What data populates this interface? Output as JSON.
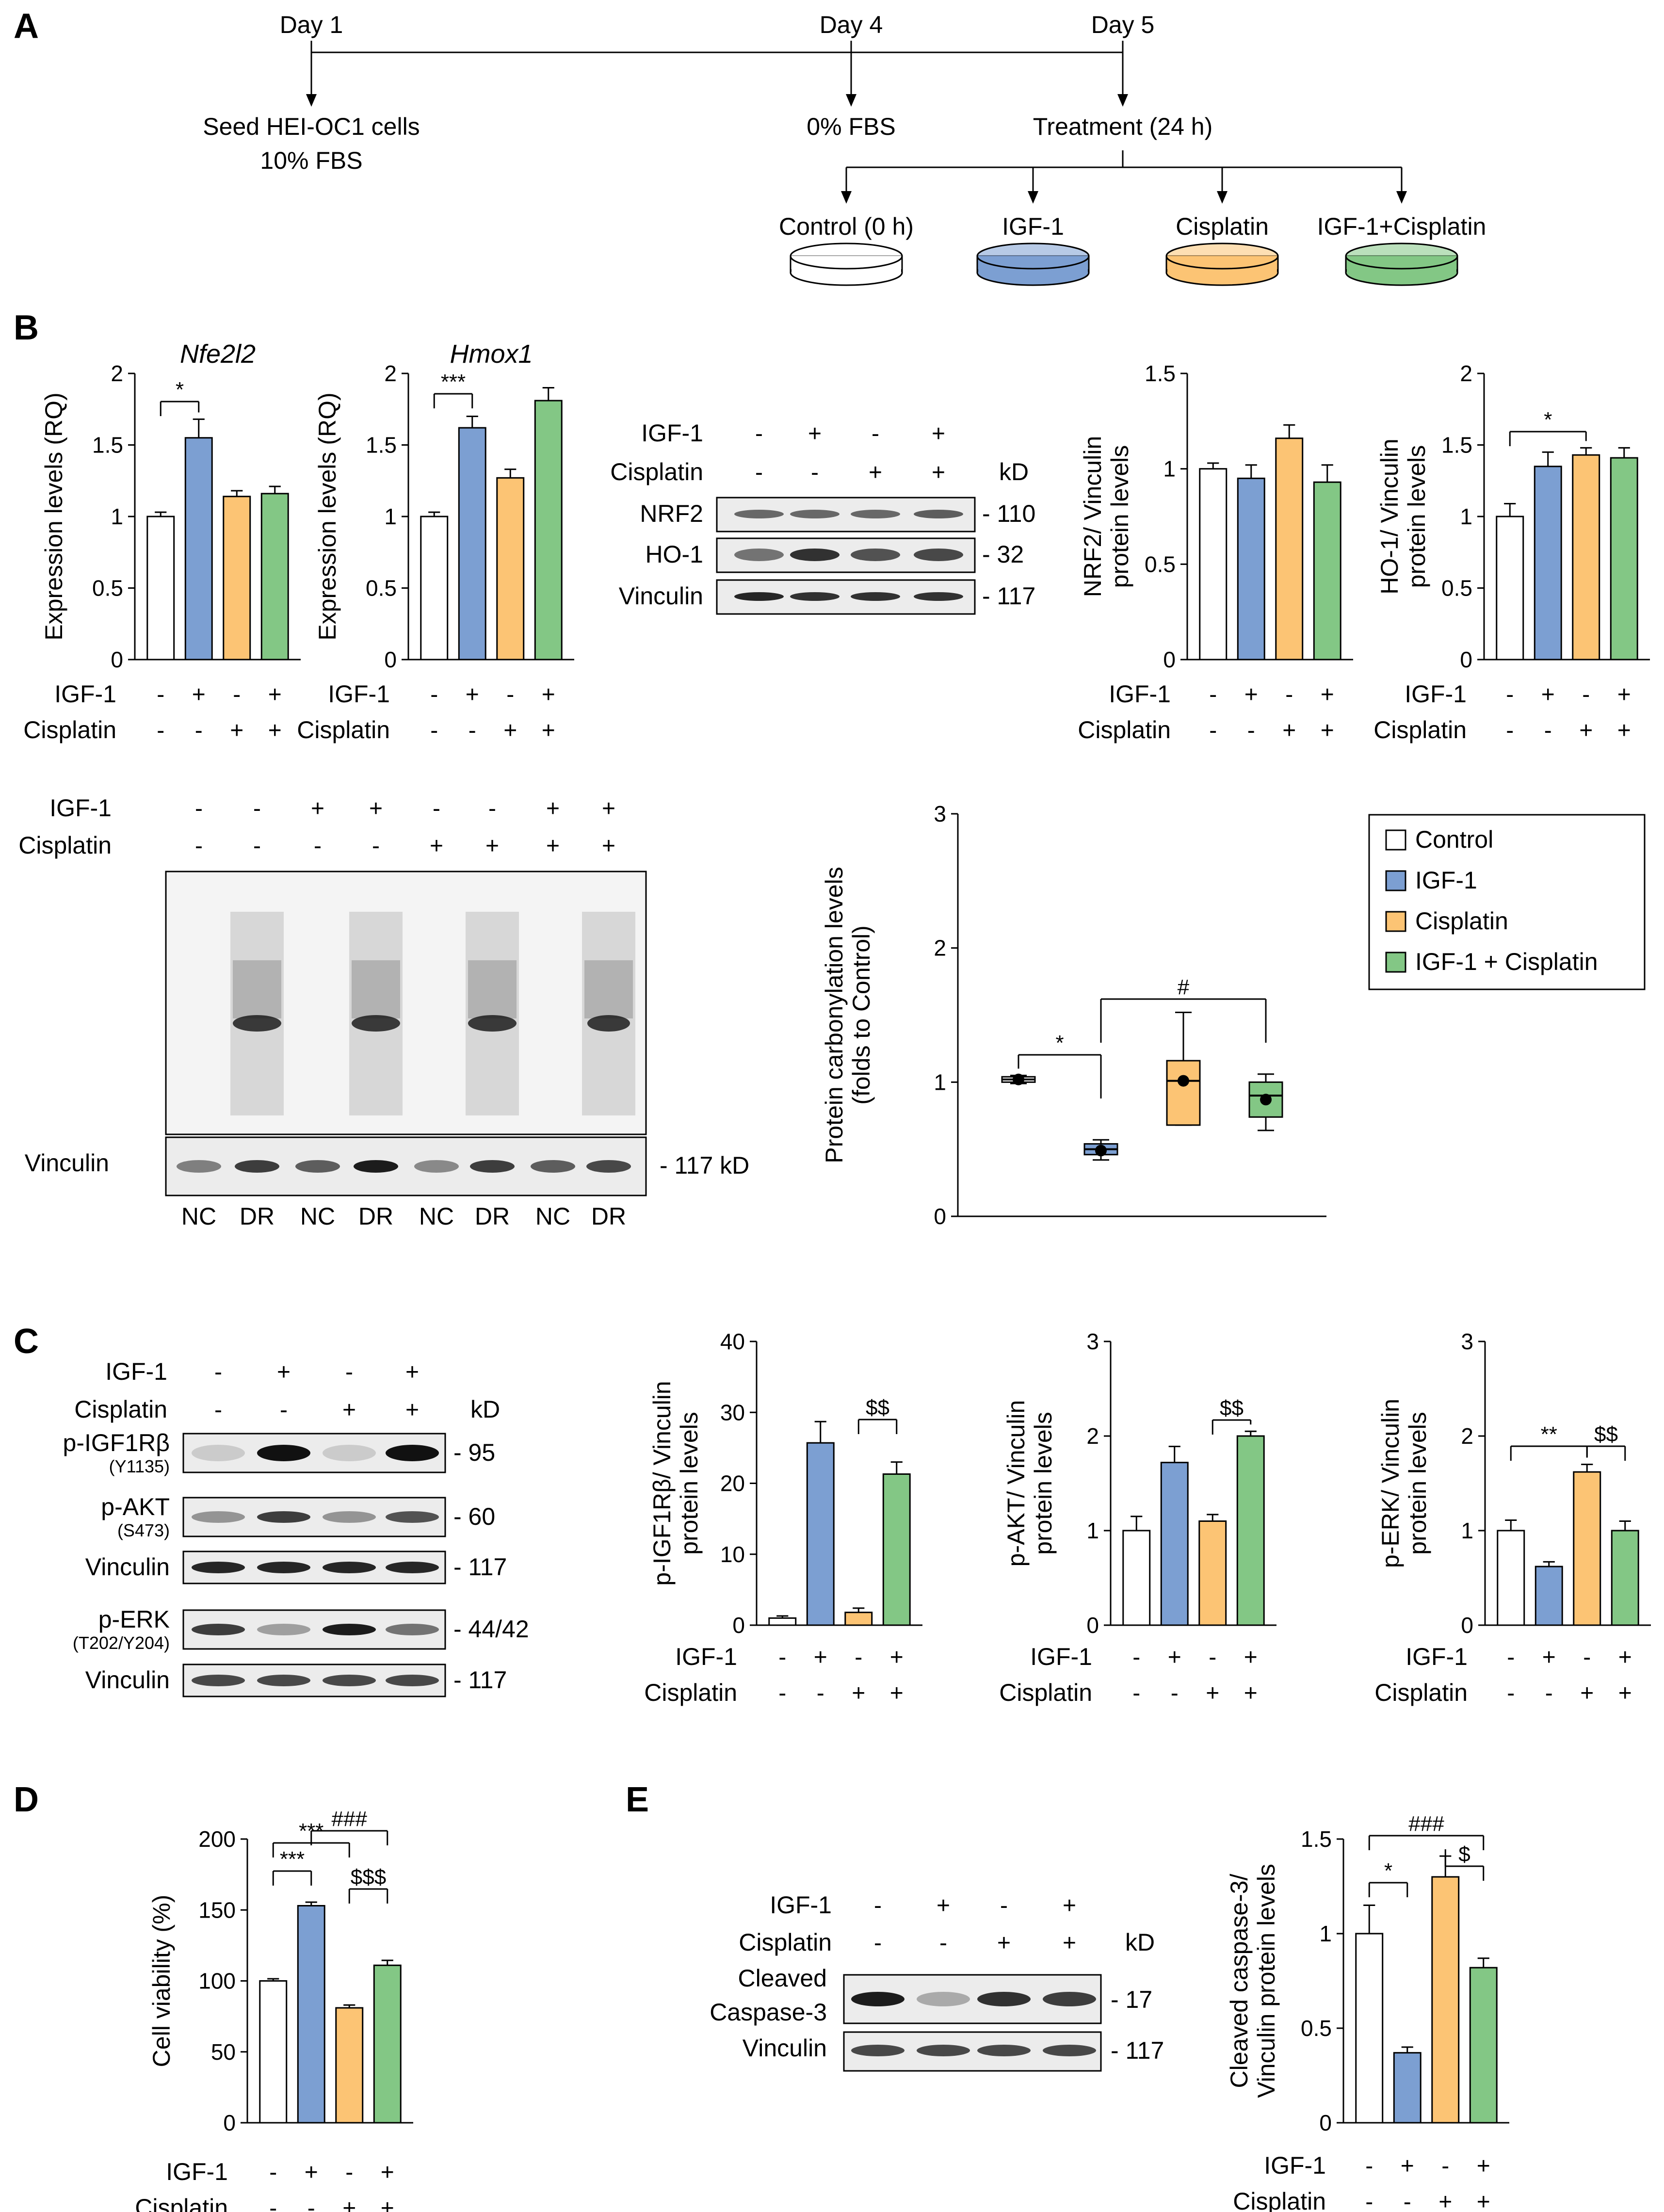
{
  "colors": {
    "control": "#ffffff",
    "igf1": "#7c9fd2",
    "cisplatin": "#fcc474",
    "combo": "#83c785",
    "line": "#000000",
    "band": "#111111",
    "blot": "#ececec",
    "blotA": "#f2f2f2"
  },
  "panelA": {
    "letter": "A",
    "day1": "Day 1",
    "day4": "Day 4",
    "day5": "Day 5",
    "seed1": "Seed HEI-OC1 cells",
    "seed2": "10% FBS",
    "fbs0": "0% FBS",
    "treatment": "Treatment (24 h)",
    "groups": [
      "Control (0 h)",
      "IGF-1",
      "Cisplatin",
      "IGF-1+Cisplatin"
    ]
  },
  "common": {
    "igf1": "IGF-1",
    "cisplatin": "Cisplatin",
    "kd": "kD",
    "vinculin": "Vinculin",
    "signs4_igf": [
      "-",
      "+",
      "-",
      "+"
    ],
    "signs4_cis": [
      "-",
      "-",
      "+",
      "+"
    ],
    "signs8_igf": [
      "-",
      "-",
      "+",
      "+",
      "-",
      "-",
      "+",
      "+"
    ],
    "signs8_cis": [
      "-",
      "-",
      "-",
      "-",
      "+",
      "+",
      "+",
      "+"
    ]
  },
  "panelB": {
    "letter": "B",
    "blot": {
      "rows": [
        "NRF2",
        "HO-1",
        "Vinculin"
      ],
      "sizes": [
        "- 110",
        "- 32",
        "- 117"
      ]
    },
    "blot2": {
      "lanes": [
        "NC",
        "DR",
        "NC",
        "DR",
        "NC",
        "DR",
        "NC",
        "DR"
      ],
      "vinSize": "- 117 kD"
    },
    "legend": [
      "Control",
      "IGF-1",
      "Cisplatin",
      "IGF-1 + Cisplatin"
    ]
  },
  "panelC": {
    "letter": "C",
    "blot": {
      "rows": [
        "p-IGF1Rβ",
        "p-AKT",
        "Vinculin",
        "p-ERK",
        "Vinculin"
      ],
      "subs": [
        "(Y1135)",
        "(S473)",
        "",
        "(T202/Y204)",
        ""
      ],
      "sizes": [
        "- 95",
        "- 60",
        "- 117",
        "- 44/42",
        "- 117"
      ]
    }
  },
  "panelD": {
    "letter": "D"
  },
  "panelE": {
    "letter": "E",
    "blot": {
      "rows": [
        "Cleaved",
        "Caspase-3",
        "Vinculin"
      ],
      "sizes": [
        "- 17",
        "- 117"
      ]
    }
  },
  "chart_data": [
    {
      "id": "nfe2l2",
      "type": "bar",
      "title": "Nfe2l2",
      "ylabel": "Expression levels (RQ)",
      "ylim": [
        0,
        2
      ],
      "yticks": [
        0,
        0.5,
        1,
        1.5,
        2
      ],
      "ytick_labels": [
        "0",
        "0.5",
        "1",
        "1.5",
        "2"
      ],
      "categories": [
        "Control",
        "IGF-1",
        "Cisplatin",
        "IGF-1 + Cisplatin"
      ],
      "values": [
        1.0,
        1.55,
        1.14,
        1.16
      ],
      "errors": [
        0.03,
        0.13,
        0.04,
        0.05
      ],
      "significance": [
        {
          "from": 0,
          "to": 1,
          "label": "*"
        }
      ]
    },
    {
      "id": "hmox1",
      "type": "bar",
      "title": "Hmox1",
      "ylabel": "Expression levels (RQ)",
      "ylim": [
        0,
        2
      ],
      "yticks": [
        0,
        0.5,
        1,
        1.5,
        2
      ],
      "ytick_labels": [
        "0",
        "0.5",
        "1",
        "1.5",
        "2"
      ],
      "categories": [
        "Control",
        "IGF-1",
        "Cisplatin",
        "IGF-1 + Cisplatin"
      ],
      "values": [
        1.0,
        1.62,
        1.27,
        1.81
      ],
      "errors": [
        0.03,
        0.08,
        0.06,
        0.09
      ],
      "significance": [
        {
          "from": 0,
          "to": 1,
          "label": "***"
        }
      ]
    },
    {
      "id": "nrf2",
      "type": "bar",
      "title": "",
      "ylabel": "NRF2/ Vinculin|protein levels",
      "ylim": [
        0,
        1.5
      ],
      "yticks": [
        0,
        0.5,
        1,
        1.5
      ],
      "ytick_labels": [
        "0",
        "0.5",
        "1",
        "1.5"
      ],
      "categories": [
        "Control",
        "IGF-1",
        "Cisplatin",
        "IGF-1 + Cisplatin"
      ],
      "values": [
        1.0,
        0.95,
        1.16,
        0.93
      ],
      "errors": [
        0.03,
        0.07,
        0.07,
        0.09
      ],
      "significance": []
    },
    {
      "id": "ho1",
      "type": "bar",
      "title": "",
      "ylabel": "HO-1/ Vinculin|protein levels",
      "ylim": [
        0,
        2
      ],
      "yticks": [
        0,
        0.5,
        1,
        1.5,
        2
      ],
      "ytick_labels": [
        "0",
        "0.5",
        "1",
        "1.5",
        "2"
      ],
      "categories": [
        "Control",
        "IGF-1",
        "Cisplatin",
        "IGF-1 + Cisplatin"
      ],
      "values": [
        1.0,
        1.35,
        1.43,
        1.41
      ],
      "errors": [
        0.09,
        0.1,
        0.05,
        0.07
      ],
      "significance": [
        {
          "from": 0,
          "to": 2,
          "label": "*"
        }
      ]
    },
    {
      "id": "carbonyl",
      "type": "box",
      "title": "",
      "ylabel": "Protein carbonylation levels|(folds to Control)",
      "ylim": [
        0,
        3
      ],
      "yticks": [
        0,
        1,
        2,
        3
      ],
      "ytick_labels": [
        "0",
        "1",
        "2",
        "3"
      ],
      "categories": [
        "Control",
        "IGF-1",
        "Cisplatin",
        "IGF-1 + Cisplatin"
      ],
      "boxes": [
        {
          "min": 0.99,
          "q1": 1.0,
          "median": 1.02,
          "q3": 1.04,
          "max": 1.05,
          "mean": 1.02
        },
        {
          "min": 0.42,
          "q1": 0.46,
          "median": 0.5,
          "q3": 0.54,
          "max": 0.57,
          "mean": 0.49
        },
        {
          "min": 0.68,
          "q1": 0.68,
          "median": 1.01,
          "q3": 1.16,
          "max": 1.52,
          "mean": 1.01
        },
        {
          "min": 0.64,
          "q1": 0.74,
          "median": 0.9,
          "q3": 1.0,
          "max": 1.06,
          "mean": 0.87
        }
      ],
      "significance": [
        {
          "from": 0,
          "to": 1,
          "label": "*"
        },
        {
          "from": 1,
          "to": 3,
          "label": "#"
        }
      ]
    },
    {
      "id": "pigf1r",
      "type": "bar",
      "title": "",
      "ylabel": "p-IGF1Rβ/ Vinculin|protein levels",
      "ylim": [
        0,
        40
      ],
      "yticks": [
        0,
        10,
        20,
        30,
        40
      ],
      "ytick_labels": [
        "0",
        "10",
        "20",
        "30",
        "40"
      ],
      "categories": [
        "Control",
        "IGF-1",
        "Cisplatin",
        "IGF-1 + Cisplatin"
      ],
      "values": [
        1.0,
        25.7,
        1.8,
        21.3
      ],
      "errors": [
        0.3,
        3.0,
        0.6,
        1.7
      ],
      "significance": [
        {
          "from": 2,
          "to": 3,
          "label": "$$"
        }
      ]
    },
    {
      "id": "pakt",
      "type": "bar",
      "title": "",
      "ylabel": "p-AKT/ Vinculin|protein levels",
      "ylim": [
        0,
        3
      ],
      "yticks": [
        0,
        1,
        2,
        3
      ],
      "ytick_labels": [
        "0",
        "1",
        "2",
        "3"
      ],
      "categories": [
        "Control",
        "IGF-1",
        "Cisplatin",
        "IGF-1 + Cisplatin"
      ],
      "values": [
        1.0,
        1.72,
        1.1,
        2.0
      ],
      "errors": [
        0.15,
        0.17,
        0.07,
        0.05
      ],
      "significance": [
        {
          "from": 2,
          "to": 3,
          "label": "$$"
        }
      ]
    },
    {
      "id": "perk",
      "type": "bar",
      "title": "",
      "ylabel": "p-ERK/ Vinculin|protein levels",
      "ylim": [
        0,
        3
      ],
      "yticks": [
        0,
        1,
        2,
        3
      ],
      "ytick_labels": [
        "0",
        "1",
        "2",
        "3"
      ],
      "categories": [
        "Control",
        "IGF-1",
        "Cisplatin",
        "IGF-1 + Cisplatin"
      ],
      "values": [
        1.0,
        0.62,
        1.62,
        1.0
      ],
      "errors": [
        0.11,
        0.05,
        0.08,
        0.1
      ],
      "significance": [
        {
          "from": 0,
          "to": 2,
          "label": "**"
        },
        {
          "from": 2,
          "to": 3,
          "label": "$$"
        }
      ]
    },
    {
      "id": "viability",
      "type": "bar",
      "title": "",
      "ylabel": "Cell viability (%)",
      "ylim": [
        0,
        200
      ],
      "yticks": [
        0,
        50,
        100,
        150,
        200
      ],
      "ytick_labels": [
        "0",
        "50",
        "100",
        "150",
        "200"
      ],
      "categories": [
        "Control",
        "IGF-1",
        "Cisplatin",
        "IGF-1 + Cisplatin"
      ],
      "values": [
        100,
        153,
        81,
        111
      ],
      "errors": [
        1.5,
        2.5,
        2.0,
        3.5
      ],
      "significance": [
        {
          "from": 0,
          "to": 1,
          "label": "***"
        },
        {
          "from": 0,
          "to": 2,
          "label": "***"
        },
        {
          "from": 1,
          "to": 3,
          "label": "###"
        },
        {
          "from": 2,
          "to": 3,
          "label": "$$$"
        }
      ]
    },
    {
      "id": "caspase",
      "type": "bar",
      "title": "",
      "ylabel": "Cleaved caspase-3/|Vinculin protein levels",
      "ylim": [
        0,
        1.5
      ],
      "yticks": [
        0,
        0.5,
        1,
        1.5
      ],
      "ytick_labels": [
        "0",
        "0.5",
        "1",
        "1.5"
      ],
      "categories": [
        "Control",
        "IGF-1",
        "Cisplatin",
        "IGF-1 + Cisplatin"
      ],
      "values": [
        1.0,
        0.37,
        1.3,
        0.82
      ],
      "errors": [
        0.15,
        0.03,
        0.11,
        0.05
      ],
      "significance": [
        {
          "from": 0,
          "to": 1,
          "label": "*"
        },
        {
          "from": 2,
          "to": 3,
          "label": "$"
        },
        {
          "from": 0,
          "to": 3,
          "label": "###"
        }
      ]
    }
  ]
}
